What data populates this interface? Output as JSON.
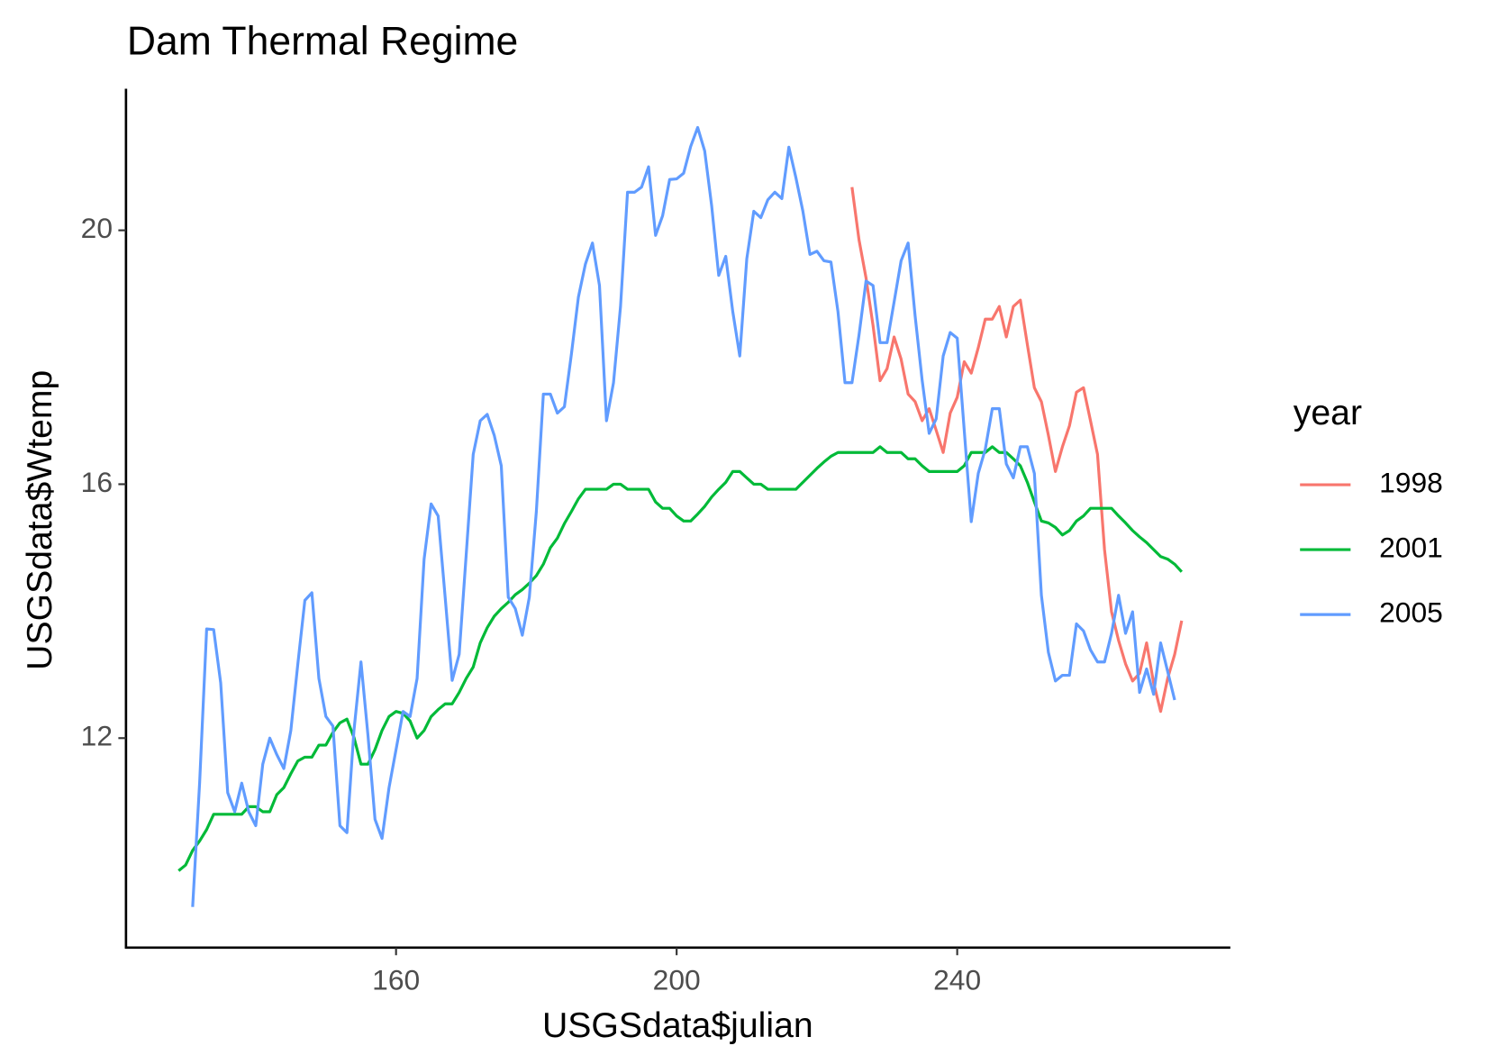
{
  "chart_data": {
    "type": "line",
    "title": "Dam Thermal Regime",
    "x_label": "USGSdata$julian",
    "y_label": "USGSdata$Wtemp",
    "legend_title": "year",
    "legend_position": "right",
    "grid": false,
    "xlim": [
      121.5,
      278.8
    ],
    "ylim": [
      8.7,
      22.2
    ],
    "xticks": [
      160,
      200,
      240
    ],
    "yticks": [
      12,
      16,
      20
    ],
    "x": [
      129,
      130,
      131,
      132,
      133,
      134,
      135,
      136,
      137,
      138,
      139,
      140,
      141,
      142,
      143,
      144,
      145,
      146,
      147,
      148,
      149,
      150,
      151,
      152,
      153,
      154,
      155,
      156,
      157,
      158,
      159,
      160,
      161,
      162,
      163,
      164,
      165,
      166,
      167,
      168,
      169,
      170,
      171,
      172,
      173,
      174,
      175,
      176,
      177,
      178,
      179,
      180,
      181,
      182,
      183,
      184,
      185,
      186,
      187,
      188,
      189,
      190,
      191,
      192,
      193,
      194,
      195,
      196,
      197,
      198,
      199,
      200,
      201,
      202,
      203,
      204,
      205,
      206,
      207,
      208,
      209,
      210,
      211,
      212,
      213,
      214,
      215,
      216,
      217,
      218,
      219,
      220,
      221,
      222,
      223,
      224,
      225,
      226,
      227,
      228,
      229,
      230,
      231,
      232,
      233,
      234,
      235,
      236,
      237,
      238,
      239,
      240,
      241,
      242,
      243,
      244,
      245,
      246,
      247,
      248,
      249,
      250,
      251,
      252,
      253,
      254,
      255,
      256,
      257,
      258,
      259,
      260,
      261,
      262,
      263,
      264,
      265,
      266,
      267,
      268,
      269,
      270,
      271,
      272
    ],
    "series": [
      {
        "name": "1998",
        "color": "#F8766D",
        "values": [
          null,
          null,
          null,
          null,
          null,
          null,
          null,
          null,
          null,
          null,
          null,
          null,
          null,
          null,
          null,
          null,
          null,
          null,
          null,
          null,
          null,
          null,
          null,
          null,
          null,
          null,
          null,
          null,
          null,
          null,
          null,
          null,
          null,
          null,
          null,
          null,
          null,
          null,
          null,
          null,
          null,
          null,
          null,
          null,
          null,
          null,
          null,
          null,
          null,
          null,
          null,
          null,
          null,
          null,
          null,
          null,
          null,
          null,
          null,
          null,
          null,
          null,
          null,
          null,
          null,
          null,
          null,
          null,
          null,
          null,
          null,
          null,
          null,
          null,
          null,
          null,
          null,
          null,
          null,
          null,
          null,
          null,
          null,
          null,
          null,
          null,
          null,
          null,
          null,
          null,
          null,
          null,
          null,
          null,
          null,
          null,
          20.68,
          19.85,
          19.25,
          18.5,
          17.63,
          17.82,
          18.32,
          17.97,
          17.42,
          17.3,
          17.0,
          17.19,
          16.85,
          16.5,
          17.12,
          17.37,
          17.93,
          17.75,
          18.15,
          18.6,
          18.6,
          18.8,
          18.32,
          18.8,
          18.9,
          18.2,
          17.52,
          17.3,
          16.77,
          16.2,
          16.59,
          16.92,
          17.45,
          17.52,
          17.0,
          16.47,
          14.97,
          13.99,
          13.54,
          13.17,
          12.9,
          13.02,
          13.5,
          12.87,
          12.42,
          12.94,
          13.32,
          13.85
        ]
      },
      {
        "name": "2001",
        "color": "#00BA38",
        "values": [
          9.91,
          10.0,
          10.23,
          10.38,
          10.56,
          10.8,
          10.8,
          10.8,
          10.8,
          10.8,
          10.92,
          10.92,
          10.84,
          10.84,
          11.11,
          11.22,
          11.44,
          11.64,
          11.7,
          11.7,
          11.89,
          11.89,
          12.09,
          12.24,
          12.3,
          12.01,
          11.59,
          11.59,
          11.82,
          12.12,
          12.34,
          12.42,
          12.39,
          12.27,
          12.0,
          12.12,
          12.34,
          12.45,
          12.54,
          12.54,
          12.72,
          12.94,
          13.12,
          13.5,
          13.74,
          13.92,
          14.04,
          14.14,
          14.26,
          14.34,
          14.44,
          14.56,
          14.74,
          15.0,
          15.15,
          15.38,
          15.57,
          15.77,
          15.92,
          15.92,
          15.92,
          15.92,
          16.0,
          16.0,
          15.92,
          15.92,
          15.92,
          15.92,
          15.72,
          15.62,
          15.62,
          15.5,
          15.42,
          15.42,
          15.53,
          15.65,
          15.8,
          15.92,
          16.03,
          16.2,
          16.2,
          16.1,
          16.0,
          16.0,
          15.92,
          15.92,
          15.92,
          15.92,
          15.92,
          16.03,
          16.14,
          16.25,
          16.35,
          16.44,
          16.5,
          16.5,
          16.5,
          16.5,
          16.5,
          16.5,
          16.59,
          16.5,
          16.5,
          16.5,
          16.4,
          16.4,
          16.29,
          16.2,
          16.2,
          16.2,
          16.2,
          16.2,
          16.29,
          16.5,
          16.5,
          16.5,
          16.59,
          16.5,
          16.5,
          16.4,
          16.29,
          16.03,
          15.72,
          15.42,
          15.39,
          15.32,
          15.2,
          15.27,
          15.42,
          15.5,
          15.62,
          15.62,
          15.62,
          15.62,
          15.5,
          15.39,
          15.27,
          15.17,
          15.08,
          14.97,
          14.86,
          14.82,
          14.74,
          14.62
        ]
      },
      {
        "name": "2005",
        "color": "#619CFF",
        "values": [
          null,
          null,
          9.34,
          11.3,
          13.72,
          13.71,
          12.87,
          11.14,
          10.84,
          11.29,
          10.84,
          10.62,
          11.59,
          12.0,
          11.74,
          11.52,
          12.12,
          13.17,
          14.17,
          14.29,
          12.94,
          12.34,
          12.19,
          10.62,
          10.51,
          12.12,
          13.2,
          12.04,
          10.72,
          10.42,
          11.22,
          11.82,
          12.42,
          12.34,
          12.94,
          14.82,
          15.69,
          15.5,
          14.22,
          12.91,
          13.32,
          14.89,
          16.47,
          17.0,
          17.1,
          16.77,
          16.29,
          14.22,
          14.04,
          13.62,
          14.22,
          15.57,
          17.42,
          17.42,
          17.12,
          17.22,
          18.05,
          18.95,
          19.47,
          19.8,
          19.13,
          17.0,
          17.6,
          18.8,
          20.6,
          20.6,
          20.68,
          21.0,
          19.92,
          20.23,
          20.8,
          20.81,
          20.9,
          21.32,
          21.62,
          21.25,
          20.38,
          19.29,
          19.59,
          18.72,
          18.02,
          19.55,
          20.3,
          20.2,
          20.48,
          20.6,
          20.5,
          21.31,
          20.83,
          20.3,
          19.62,
          19.67,
          19.52,
          19.5,
          18.72,
          17.6,
          17.6,
          18.35,
          19.2,
          19.13,
          18.23,
          18.23,
          18.87,
          19.52,
          19.8,
          18.65,
          17.64,
          16.8,
          17.03,
          18.02,
          18.39,
          18.3,
          16.85,
          15.41,
          16.17,
          16.55,
          17.19,
          17.19,
          16.32,
          16.1,
          16.59,
          16.59,
          16.17,
          14.25,
          13.35,
          12.9,
          12.99,
          12.99,
          13.8,
          13.69,
          13.39,
          13.2,
          13.2,
          13.65,
          14.25,
          13.65,
          13.99,
          12.72,
          13.09,
          12.69,
          13.5,
          13.05,
          12.6,
          null
        ]
      }
    ]
  }
}
